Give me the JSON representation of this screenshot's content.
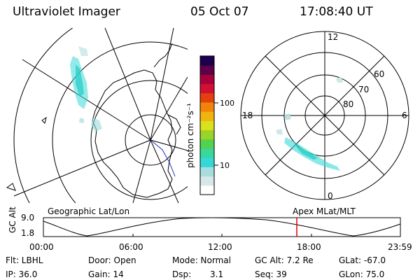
{
  "header": {
    "instrument": "Ultraviolet Imager",
    "date": "05 Oct 07",
    "time": "17:08:40 UT"
  },
  "colorbar": {
    "unit_label": "photon cm⁻²s⁻¹",
    "ticks": [
      "100",
      "10"
    ],
    "colors": [
      "#ffffff",
      "#d8e7e7",
      "#a9dcdc",
      "#34d8d8",
      "#37d79e",
      "#52d24e",
      "#9bd329",
      "#d8e11c",
      "#efb40f",
      "#f1830a",
      "#e3400d",
      "#d11033",
      "#a8003c",
      "#5e0048",
      "#1d004d"
    ]
  },
  "polar_plot": {
    "hour_labels": {
      "top": "12",
      "left": "18",
      "right": "6",
      "bottom": "0"
    },
    "lat_labels": [
      "60",
      "70",
      "80"
    ]
  },
  "timeline": {
    "axis_label": "GC Alt",
    "ymax": "9.0",
    "ymin": "1.8",
    "left_caption": "Geographic Lat/Lon",
    "right_caption": "Apex MLat/MLT",
    "time_ticks": [
      "00:00",
      "06:00",
      "12:00",
      "18:00",
      "23:59"
    ],
    "marker_color": "#e00000"
  },
  "status": {
    "filter": "Flt: LBHL",
    "door": "Door: Open",
    "mode": "Mode: Normal",
    "gc_alt": "GC Alt: 7.2 Re",
    "glat": "GLat: -67.0",
    "ip": "IP: 36.0",
    "gain": "Gain: 14",
    "dsp_label": "Dsp:",
    "dsp_value": "3.1",
    "seq": "Seq: 39",
    "glon": "GLon: 75.0"
  }
}
